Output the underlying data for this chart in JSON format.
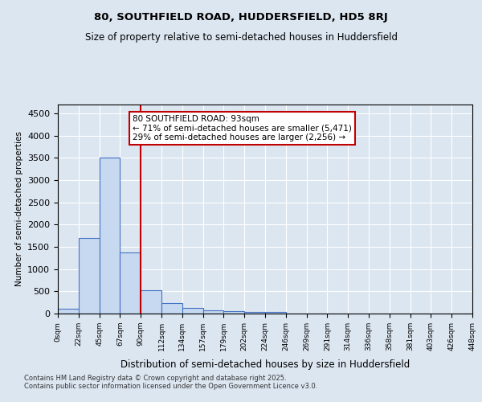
{
  "title1": "80, SOUTHFIELD ROAD, HUDDERSFIELD, HD5 8RJ",
  "title2": "Size of property relative to semi-detached houses in Huddersfield",
  "xlabel": "Distribution of semi-detached houses by size in Huddersfield",
  "ylabel": "Number of semi-detached properties",
  "footer": "Contains HM Land Registry data © Crown copyright and database right 2025.\nContains public sector information licensed under the Open Government Licence v3.0.",
  "bin_labels": [
    "0sqm",
    "22sqm",
    "45sqm",
    "67sqm",
    "90sqm",
    "112sqm",
    "134sqm",
    "157sqm",
    "179sqm",
    "202sqm",
    "224sqm",
    "246sqm",
    "269sqm",
    "291sqm",
    "314sqm",
    "336sqm",
    "358sqm",
    "381sqm",
    "403sqm",
    "426sqm",
    "448sqm"
  ],
  "bar_values": [
    100,
    1700,
    3500,
    1380,
    530,
    230,
    130,
    80,
    60,
    40,
    30,
    0,
    0,
    0,
    0,
    0,
    0,
    0,
    0,
    0
  ],
  "bar_color": "#c6d9f0",
  "bar_edge_color": "#4472c4",
  "vline_x": 4,
  "vline_color": "#c00000",
  "annotation_text": "80 SOUTHFIELD ROAD: 93sqm\n← 71% of semi-detached houses are smaller (5,471)\n29% of semi-detached houses are larger (2,256) →",
  "annotation_box_color": "#ffffff",
  "annotation_box_edge": "#c00000",
  "ylim": [
    0,
    4700
  ],
  "yticks": [
    0,
    500,
    1000,
    1500,
    2000,
    2500,
    3000,
    3500,
    4000,
    4500
  ],
  "bg_color": "#dce6f1",
  "plot_bg_color": "#dce6f1",
  "grid_color": "#ffffff"
}
